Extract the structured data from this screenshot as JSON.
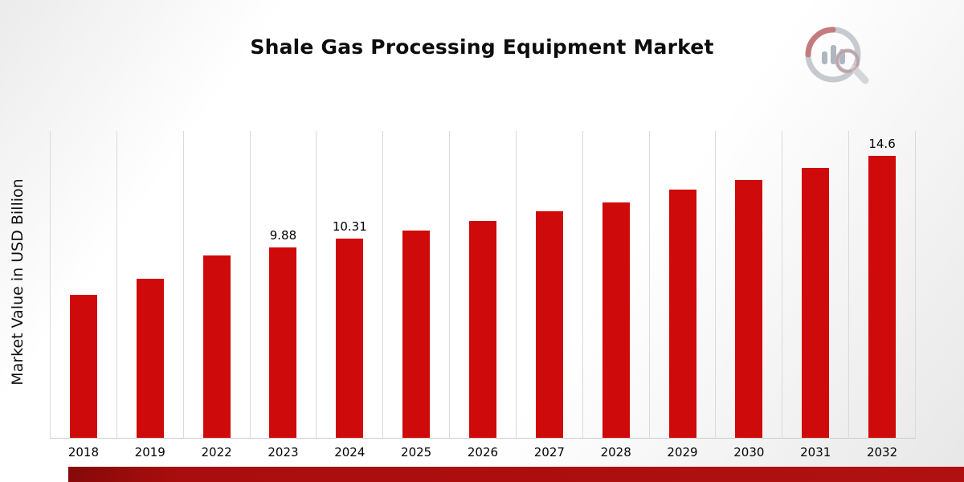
{
  "title": "Shale Gas Processing Equipment Market",
  "ylabel": "Market Value in USD Billion",
  "chart_data": {
    "type": "bar",
    "categories": [
      "2018",
      "2019",
      "2022",
      "2023",
      "2024",
      "2025",
      "2026",
      "2027",
      "2028",
      "2029",
      "2030",
      "2031",
      "2032"
    ],
    "values": [
      7.4,
      8.25,
      9.45,
      9.88,
      10.31,
      10.75,
      11.25,
      11.75,
      12.2,
      12.85,
      13.35,
      14.0,
      14.6
    ],
    "data_labels": {
      "2023": "9.88",
      "2024": "10.31",
      "2032": "14.6"
    },
    "title": "Shale Gas Processing Equipment Market",
    "xlabel": "",
    "ylabel": "Market Value in USD Billion",
    "ylim": [
      0,
      15.9
    ],
    "bar_color": "#cf0a0a",
    "grid": "vertical-only",
    "legend": "none"
  },
  "colors": {
    "bar": "#cf0a0a",
    "bottom_band": "#a90d0d",
    "gridline": "#dadada",
    "background_edge": "#e9e9e9"
  },
  "icons": {
    "brand_logo": "bar-chart-magnifier-logo"
  }
}
